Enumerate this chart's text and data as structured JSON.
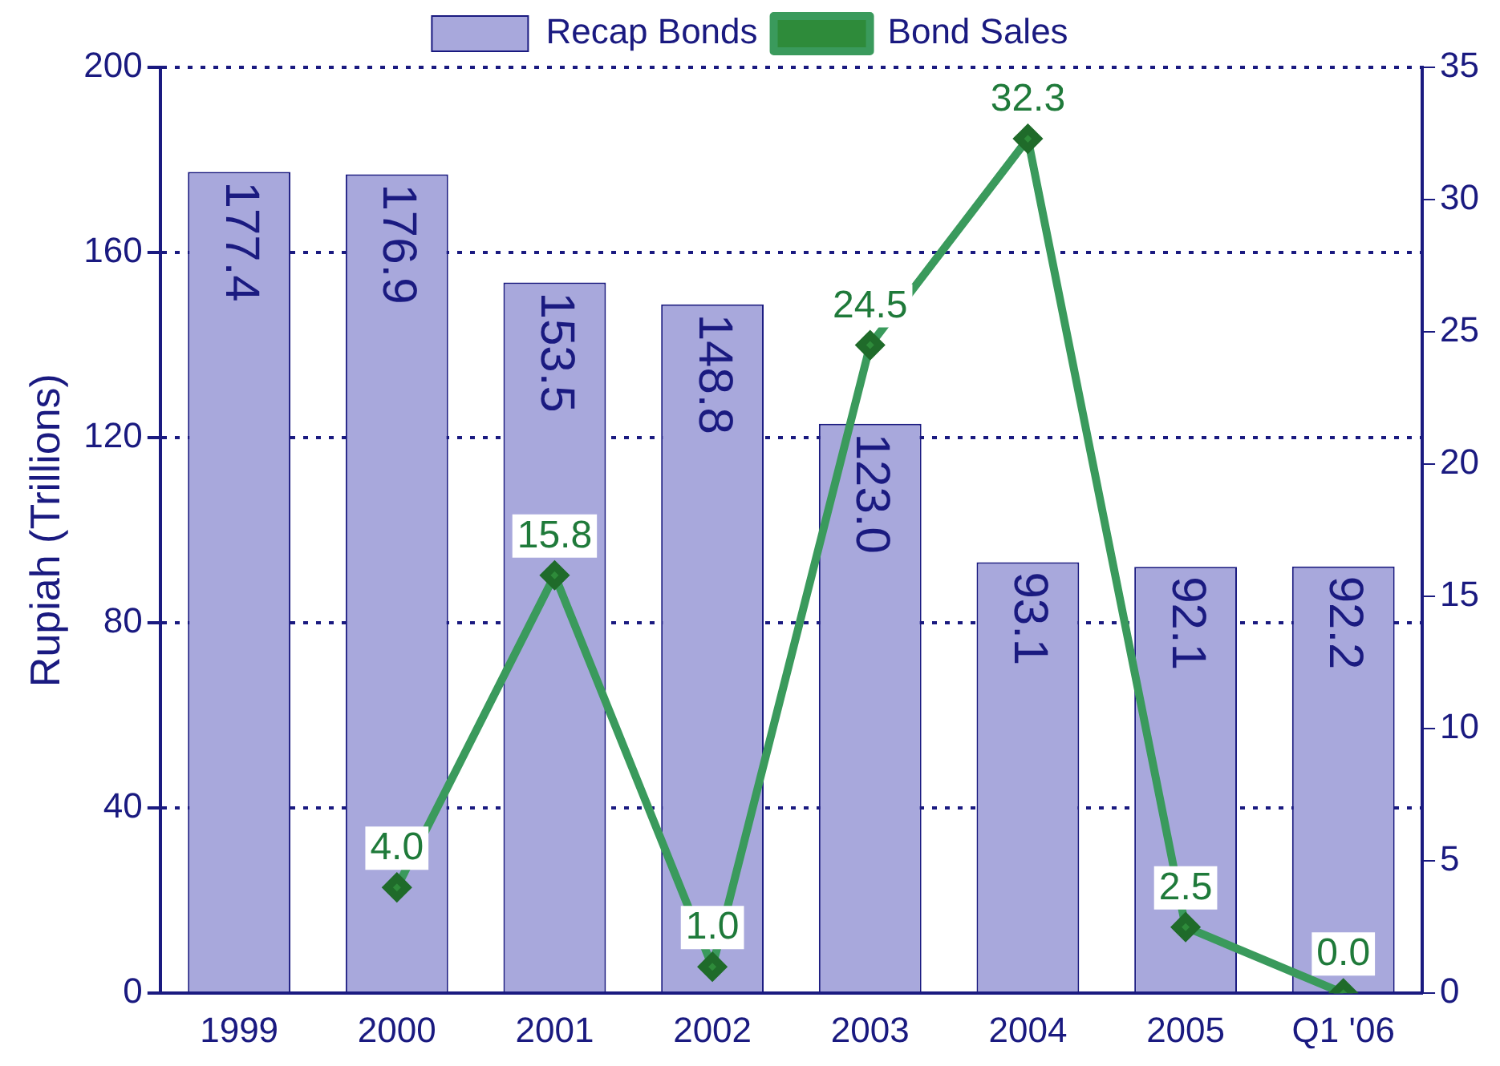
{
  "chart_data": {
    "type": "bar",
    "ylabel": "Rupiah (Trillions)",
    "categories": [
      "1999",
      "2000",
      "2001",
      "2002",
      "2003",
      "2004",
      "2005",
      "Q1 '06"
    ],
    "series": [
      {
        "name": "Recap Bonds",
        "color": "#a8a8dc",
        "values": [
          177.4,
          176.9,
          153.5,
          148.8,
          123.0,
          93.1,
          92.1,
          92.2
        ],
        "value_labels": [
          "177.4",
          "176.9",
          "153.5",
          "148.8",
          "123.0",
          "93.1",
          "92.1",
          "92.2"
        ]
      },
      {
        "name": "Bond Sales",
        "type": "line",
        "axis": "y2",
        "color": "#3a9a5c",
        "values": [
          null,
          4.0,
          15.8,
          1.0,
          24.5,
          32.3,
          2.5,
          0.0
        ],
        "value_labels": [
          null,
          "4.0",
          "15.8",
          "1.0",
          "24.5",
          "32.3",
          "2.5",
          "0.0"
        ]
      }
    ],
    "ylim": [
      0,
      200
    ],
    "yticks": [
      0,
      40,
      80,
      120,
      160,
      200
    ],
    "y2lim": [
      0,
      35
    ],
    "y2ticks": [
      0,
      5,
      10,
      15,
      20,
      25,
      30,
      35
    ],
    "grid": "y",
    "legend": "top",
    "marker": "diamond",
    "line_style": "solid"
  }
}
